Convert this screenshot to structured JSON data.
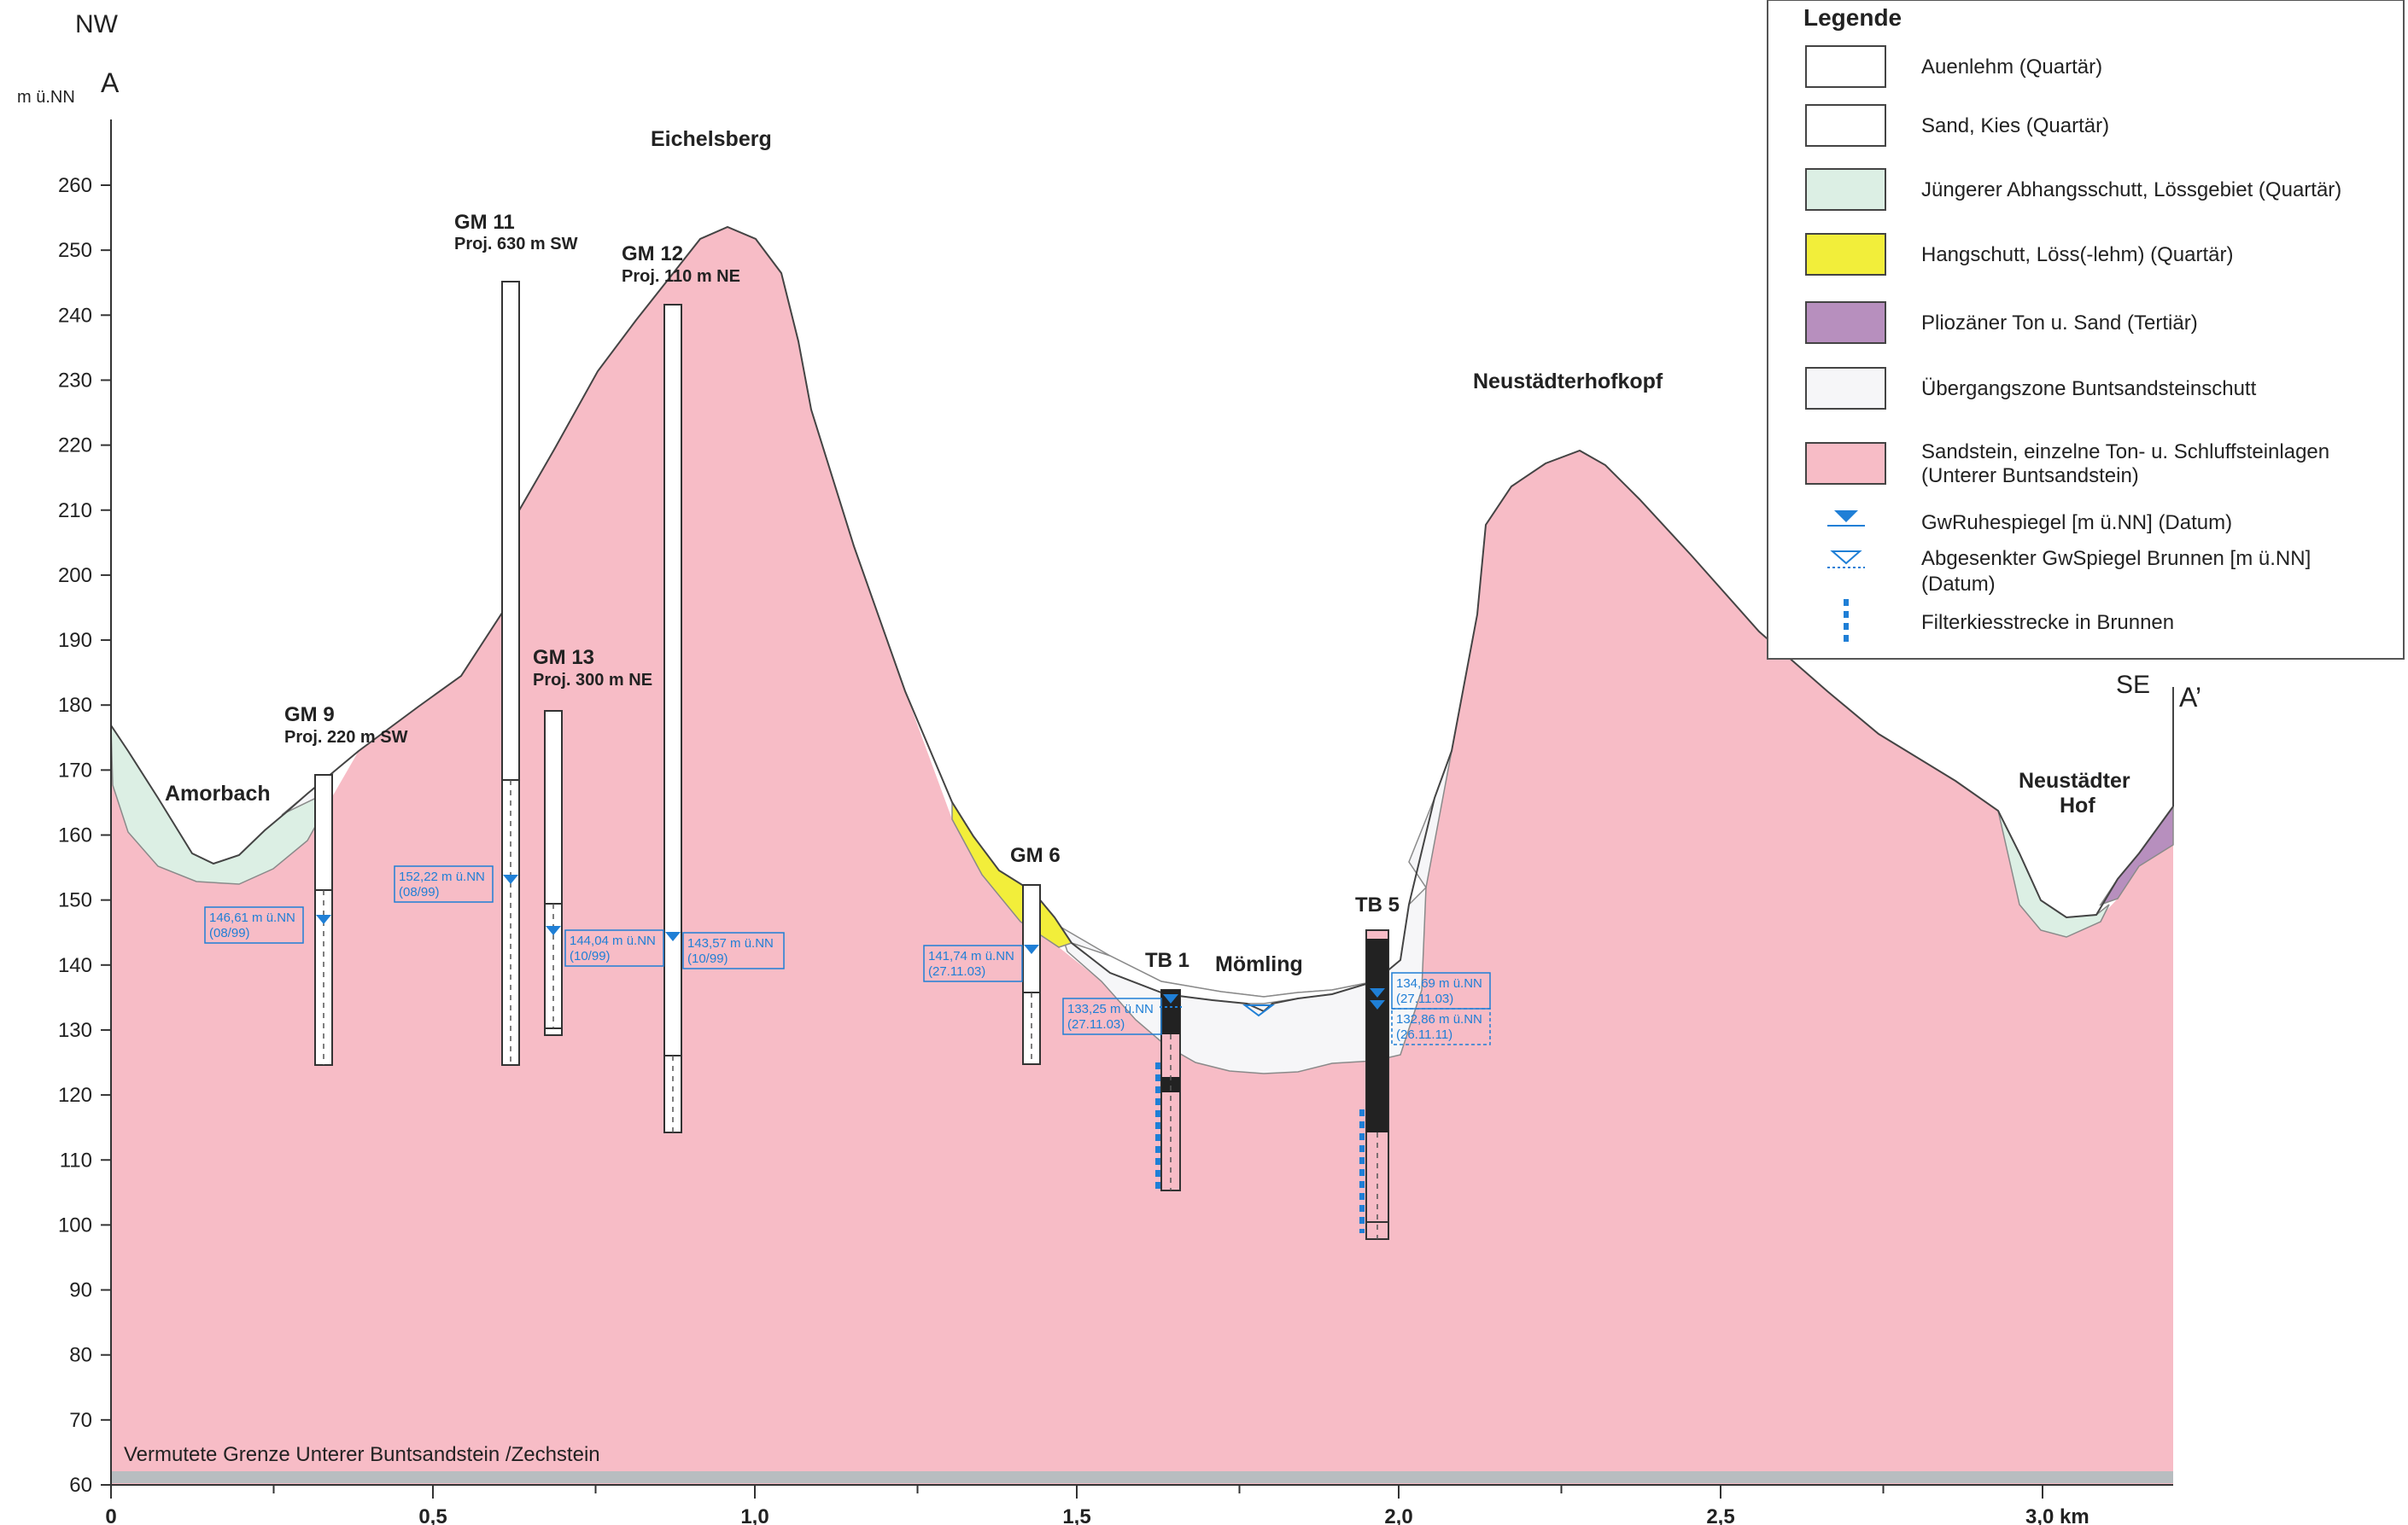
{
  "header": {
    "dir_left": "NW",
    "label_left": "A",
    "unit_left": "m ü.NN",
    "dir_right": "SE",
    "label_right": "A’"
  },
  "axes": {
    "y_ticks": [
      "60",
      "70",
      "80",
      "90",
      "100",
      "110",
      "120",
      "130",
      "140",
      "150",
      "160",
      "170",
      "180",
      "190",
      "200",
      "210",
      "220",
      "230",
      "240",
      "250",
      "260"
    ],
    "x_ticks": [
      "0",
      "0,5",
      "1,0",
      "1,5",
      "2,0",
      "2,5",
      "3,0 km"
    ],
    "y_range": [
      60,
      260
    ],
    "x_range_km": [
      0,
      3.2
    ]
  },
  "places": {
    "amorbach": "Amorbach",
    "eichelsberg": "Eichelsberg",
    "neustaedterhofkopf": "Neustädterhofkopf",
    "moemling": "Mömling",
    "neustaedter_1": "Neustädter",
    "neustaedter_2": "Hof"
  },
  "boreholes": {
    "gm9": {
      "name": "GM 9",
      "proj": "Proj. 220 m SW"
    },
    "gm11": {
      "name": "GM 11",
      "proj": "Proj. 630 m SW"
    },
    "gm12": {
      "name": "GM 12",
      "proj": "Proj. 110 m NE"
    },
    "gm13": {
      "name": "GM 13",
      "proj": "Proj. 300 m NE"
    },
    "gm6": {
      "name": "GM 6"
    },
    "tb1": {
      "name": "TB 1"
    },
    "tb5": {
      "name": "TB 5"
    }
  },
  "water_labels": {
    "gm9_a": "146,61 m ü.NN",
    "gm9_b": "(08/99)",
    "gm11_a": "152,22 m ü.NN",
    "gm11_b": "(08/99)",
    "gm13_a": "144,04 m ü.NN",
    "gm13_b": "(10/99)",
    "gm12_a": "143,57 m ü.NN",
    "gm12_b": "(10/99)",
    "gm6_a": "141,74 m ü.NN",
    "gm6_b": "(27.11.03)",
    "tb1_a": "133,25 m ü.NN",
    "tb1_b": "(27.11.03)",
    "tb5_1a": "134,69 m ü.NN",
    "tb5_1b": "(27.11.03)",
    "tb5_2a": "132,86 m ü.NN",
    "tb5_2b": "(26.11.11)"
  },
  "bottom_note": "Vermutete Grenze Unterer Buntsandstein /Zechstein",
  "legend": {
    "title": "Legende",
    "items": [
      {
        "label": "Auenlehm (Quartär)",
        "color": "#ffffff"
      },
      {
        "label": "Sand, Kies (Quartär)",
        "color": "#ffffff"
      },
      {
        "label": "Jüngerer Abhangsschutt, Lössgebiet (Quartär)",
        "color": "#dcefe4"
      },
      {
        "label": "Hangschutt, Löss(-lehm) (Quartär)",
        "color": "#f2ee3a"
      },
      {
        "label": "Pliozäner Ton u. Sand (Tertiär)",
        "color": "#b78fbe"
      },
      {
        "label": "Übergangszone Buntsandsteinschutt",
        "color": "#f6f6f8"
      },
      {
        "label": "Sandstein, einzelne Ton- u. Schluffsteinlagen",
        "label2": "(Unterer Buntsandstein)",
        "color": "#f7bcc6"
      }
    ],
    "symbols": [
      {
        "label": "GwRuhespiegel [m ü.NN] (Datum)"
      },
      {
        "label": "Abgesenkter GwSpiegel Brunnen [m ü.NN]",
        "label2": "(Datum)"
      },
      {
        "label": "Filterkiesstrecke in Brunnen"
      }
    ]
  },
  "colors": {
    "sandstone": "#f7bcc6",
    "slope_debris": "#dcefe4",
    "loess": "#f2ee3a",
    "pliocene": "#b78fbe",
    "transition": "#f6f6f8",
    "water_blue": "#1f7fd6"
  }
}
